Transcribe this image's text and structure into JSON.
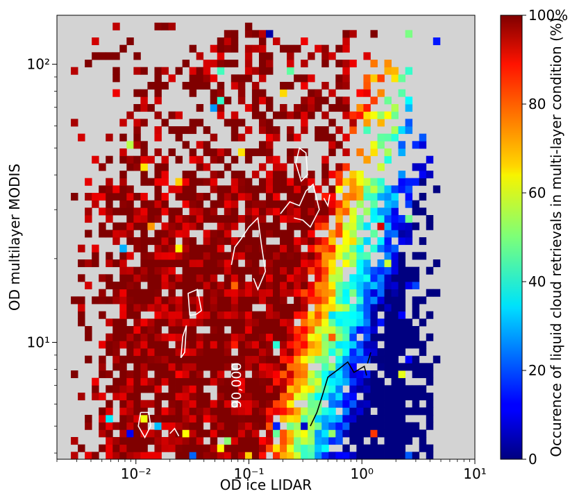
{
  "chart_data": {
    "type": "heatmap",
    "title": "",
    "xlabel": "OD ice LIDAR",
    "ylabel": "OD multilayer MODIS",
    "colorbar_label": "Occurence of liquid cloud retrievals in multi-layer condition (%)",
    "x_scale": "log",
    "y_scale": "log",
    "xlim": [
      0.002,
      10
    ],
    "ylim": [
      3.8,
      150
    ],
    "x_ticks": [
      {
        "value": 0.01,
        "label": "10⁻²"
      },
      {
        "value": 0.1,
        "label": "10⁻¹"
      },
      {
        "value": 1,
        "label": "10⁰"
      },
      {
        "value": 10,
        "label": "10¹"
      }
    ],
    "y_ticks": [
      {
        "value": 10,
        "label": "10¹"
      },
      {
        "value": 100,
        "label": "10²"
      }
    ],
    "colorbar_ticks": [
      {
        "value": 0,
        "label": "0"
      },
      {
        "value": 20,
        "label": "20"
      },
      {
        "value": 40,
        "label": "40"
      },
      {
        "value": 60,
        "label": "60"
      },
      {
        "value": 80,
        "label": "80"
      },
      {
        "value": 100,
        "label": "100%"
      }
    ],
    "colormap": "jet",
    "background_color": "#d3d3d3",
    "bins": {
      "x_count": 60,
      "y_count": 60
    },
    "value_description": "percentage of retrievals with liquid cloud; ~100% (dark red) at low ice OD, decreasing to ~0% (dark blue) toward OD ice LIDAR near 1 and low MODIS OD",
    "contours": [
      {
        "color": "white",
        "label": "90,000",
        "label_x": 0.085,
        "label_y": 7.0
      },
      {
        "color": "black",
        "label": ""
      }
    ]
  }
}
